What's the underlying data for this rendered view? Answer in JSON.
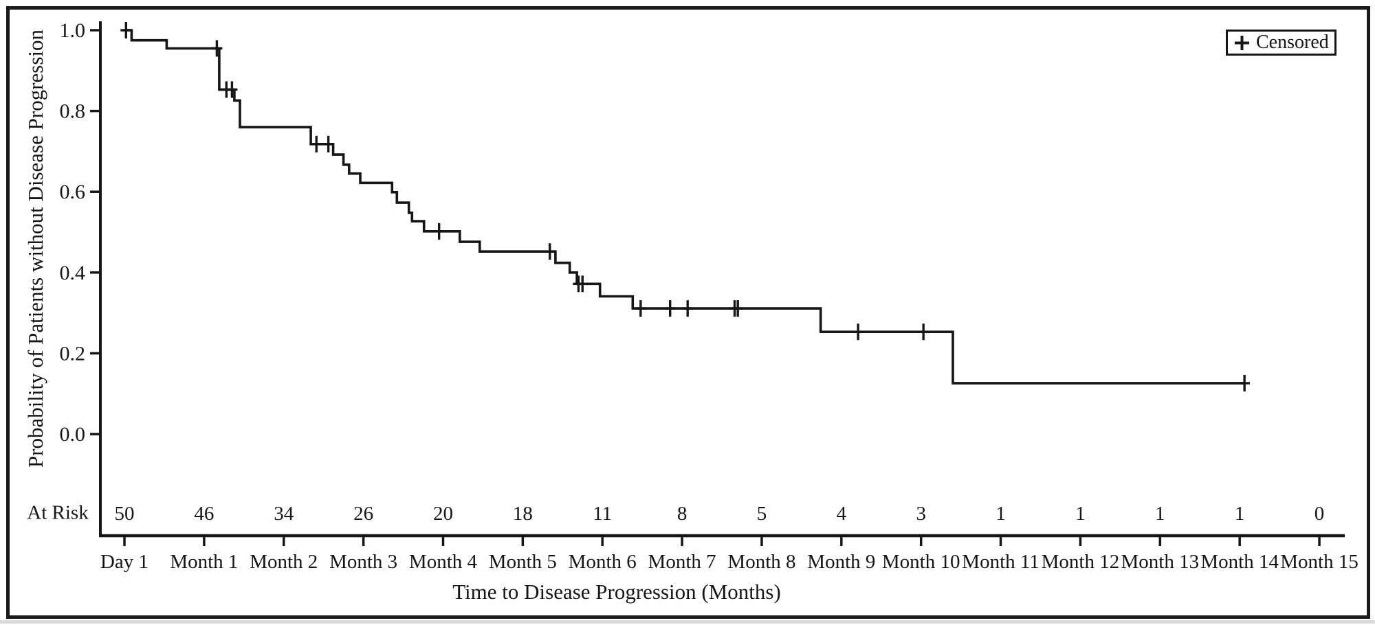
{
  "chart_data": {
    "type": "line",
    "subtype": "kaplan-meier-step-curve",
    "title": "",
    "xlabel": "Time to Disease Progression (Months)",
    "ylabel": "Probability of Patients without Disease Progression",
    "grid": false,
    "xlim": [
      0,
      15
    ],
    "ylim": [
      0.0,
      1.0
    ],
    "line_color": "#161616",
    "x_ticks": [
      {
        "v": 0,
        "label": "Day 1"
      },
      {
        "v": 1,
        "label": "Month 1"
      },
      {
        "v": 2,
        "label": "Month 2"
      },
      {
        "v": 3,
        "label": "Month 3"
      },
      {
        "v": 4,
        "label": "Month 4"
      },
      {
        "v": 5,
        "label": "Month 5"
      },
      {
        "v": 6,
        "label": "Month 6"
      },
      {
        "v": 7,
        "label": "Month 7"
      },
      {
        "v": 8,
        "label": "Month 8"
      },
      {
        "v": 9,
        "label": "Month 9"
      },
      {
        "v": 10,
        "label": "Month 10"
      },
      {
        "v": 11,
        "label": "Month 11"
      },
      {
        "v": 12,
        "label": "Month 12"
      },
      {
        "v": 13,
        "label": "Month 13"
      },
      {
        "v": 14,
        "label": "Month 14"
      },
      {
        "v": 15,
        "label": "Month 15"
      }
    ],
    "y_ticks": [
      {
        "v": 1.0,
        "label": "1.0"
      },
      {
        "v": 0.8,
        "label": "0.8"
      },
      {
        "v": 0.6,
        "label": "0.6"
      },
      {
        "v": 0.4,
        "label": "0.4"
      },
      {
        "v": 0.2,
        "label": "0.2"
      },
      {
        "v": 0.0,
        "label": "0.0"
      }
    ],
    "legend": {
      "position": "top-right",
      "entries": [
        {
          "marker": "+",
          "label": "Censored"
        }
      ]
    },
    "series": [
      {
        "name": "Probability of Patients without Disease Progression",
        "type": "step",
        "points": [
          [
            0.0,
            1.0
          ],
          [
            0.09,
            0.975
          ],
          [
            0.53,
            0.955
          ],
          [
            1.19,
            0.853
          ],
          [
            1.38,
            0.826
          ],
          [
            1.45,
            0.76
          ],
          [
            2.34,
            0.718
          ],
          [
            2.62,
            0.692
          ],
          [
            2.75,
            0.667
          ],
          [
            2.82,
            0.645
          ],
          [
            2.96,
            0.622
          ],
          [
            3.36,
            0.599
          ],
          [
            3.42,
            0.573
          ],
          [
            3.57,
            0.548
          ],
          [
            3.61,
            0.527
          ],
          [
            3.76,
            0.502
          ],
          [
            4.21,
            0.476
          ],
          [
            4.46,
            0.452
          ],
          [
            5.41,
            0.424
          ],
          [
            5.59,
            0.4
          ],
          [
            5.68,
            0.372
          ],
          [
            5.97,
            0.341
          ],
          [
            6.38,
            0.311
          ],
          [
            8.74,
            0.253
          ],
          [
            10.4,
            0.126
          ]
        ],
        "end_time": 14.06
      }
    ],
    "censor_marks": [
      [
        0.02,
        1.0
      ],
      [
        1.16,
        0.955
      ],
      [
        1.28,
        0.853
      ],
      [
        1.35,
        0.853
      ],
      [
        2.41,
        0.718
      ],
      [
        2.56,
        0.718
      ],
      [
        3.95,
        0.502
      ],
      [
        5.34,
        0.452
      ],
      [
        5.7,
        0.372
      ],
      [
        5.75,
        0.372
      ],
      [
        6.48,
        0.311
      ],
      [
        6.85,
        0.311
      ],
      [
        7.07,
        0.311
      ],
      [
        7.66,
        0.311
      ],
      [
        7.7,
        0.311
      ],
      [
        9.21,
        0.253
      ],
      [
        10.03,
        0.253
      ],
      [
        14.06,
        0.126
      ]
    ],
    "at_risk": {
      "label": "At Risk",
      "counts": [
        50,
        46,
        34,
        26,
        20,
        18,
        11,
        8,
        5,
        4,
        3,
        1,
        1,
        1,
        1,
        0
      ]
    }
  }
}
